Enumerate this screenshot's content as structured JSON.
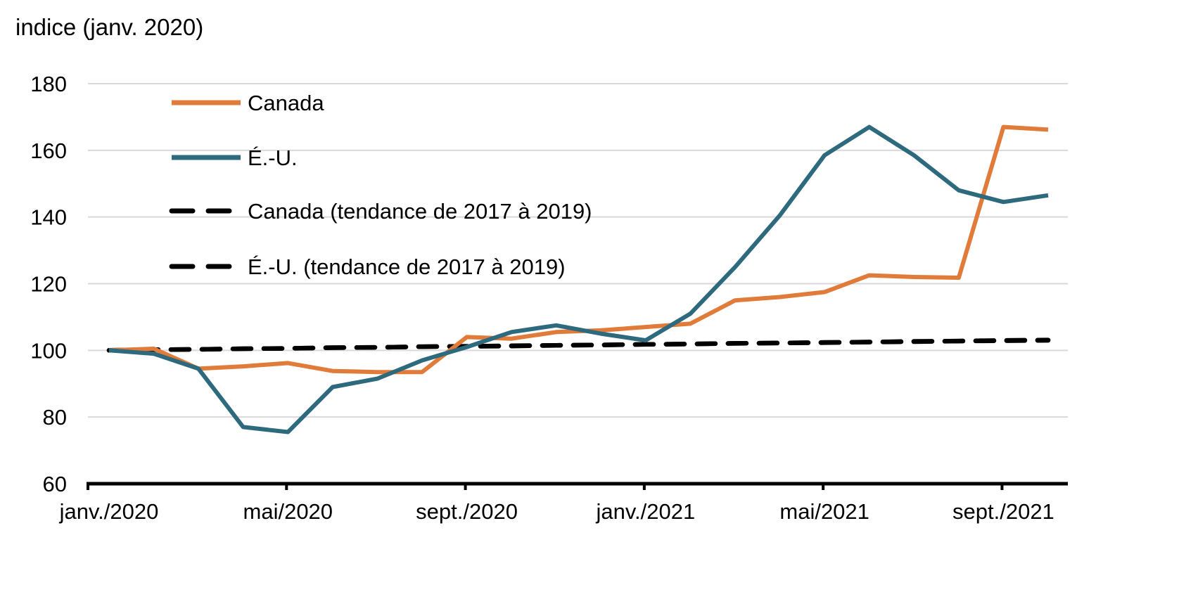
{
  "chart_data": {
    "type": "line",
    "title": "",
    "ylabel": "indice (janv. 2020)",
    "xlabel": "",
    "ylim": [
      60,
      180
    ],
    "yticks": [
      60,
      80,
      100,
      120,
      140,
      160,
      180
    ],
    "x_tick_labels": [
      "janv./2020",
      "mai/2020",
      "sept./2020",
      "janv./2021",
      "mai/2021",
      "sept./2021"
    ],
    "x_tick_indices": [
      0,
      4,
      8,
      12,
      16,
      20
    ],
    "categories": [
      "janv. 2020",
      "févr. 2020",
      "mars 2020",
      "avr. 2020",
      "mai 2020",
      "juin 2020",
      "juil. 2020",
      "août 2020",
      "sept. 2020",
      "oct. 2020",
      "nov. 2020",
      "déc. 2020",
      "janv. 2021",
      "févr. 2021",
      "mars 2021",
      "avr. 2021",
      "mai 2021",
      "juin 2021",
      "juil. 2021",
      "août 2021",
      "sept. 2021",
      "oct. 2021"
    ],
    "grid": true,
    "legend_position": "top-left",
    "series": [
      {
        "name": "Canada",
        "color": "#E07B39",
        "style": "solid",
        "values": [
          100,
          100.5,
          94.5,
          95.2,
          96.2,
          93.8,
          93.5,
          93.5,
          104,
          103.5,
          105.5,
          106,
          107,
          108,
          115,
          116,
          117.5,
          122.5,
          122,
          121.8,
          167,
          166.2
        ]
      },
      {
        "name": "É.-U.",
        "color": "#2E6A7E",
        "style": "solid",
        "values": [
          100,
          99,
          94.5,
          77,
          75.5,
          89,
          91.5,
          97,
          101,
          105.5,
          107.5,
          105,
          103,
          111,
          125,
          140.5,
          158.5,
          167,
          158.5,
          148,
          144.5,
          146.5
        ]
      },
      {
        "name": "Canada (tendance de 2017 à 2019)",
        "color": "#000000",
        "style": "dashed",
        "values": [
          100,
          100.2,
          100.3,
          100.5,
          100.6,
          100.8,
          100.9,
          101.1,
          101.2,
          101.3,
          101.5,
          101.6,
          101.8,
          101.9,
          102.1,
          102.2,
          102.3,
          102.5,
          102.6,
          102.8,
          102.9,
          103
        ]
      },
      {
        "name": "É.-U. (tendance de 2017 à 2019)",
        "color": "#000000",
        "style": "dashed",
        "values": [
          100,
          100.2,
          100.3,
          100.5,
          100.6,
          100.8,
          100.9,
          101.1,
          101.2,
          101.4,
          101.5,
          101.6,
          101.8,
          101.9,
          102.1,
          102.2,
          102.4,
          102.5,
          102.7,
          102.8,
          103,
          103.1
        ]
      }
    ]
  }
}
